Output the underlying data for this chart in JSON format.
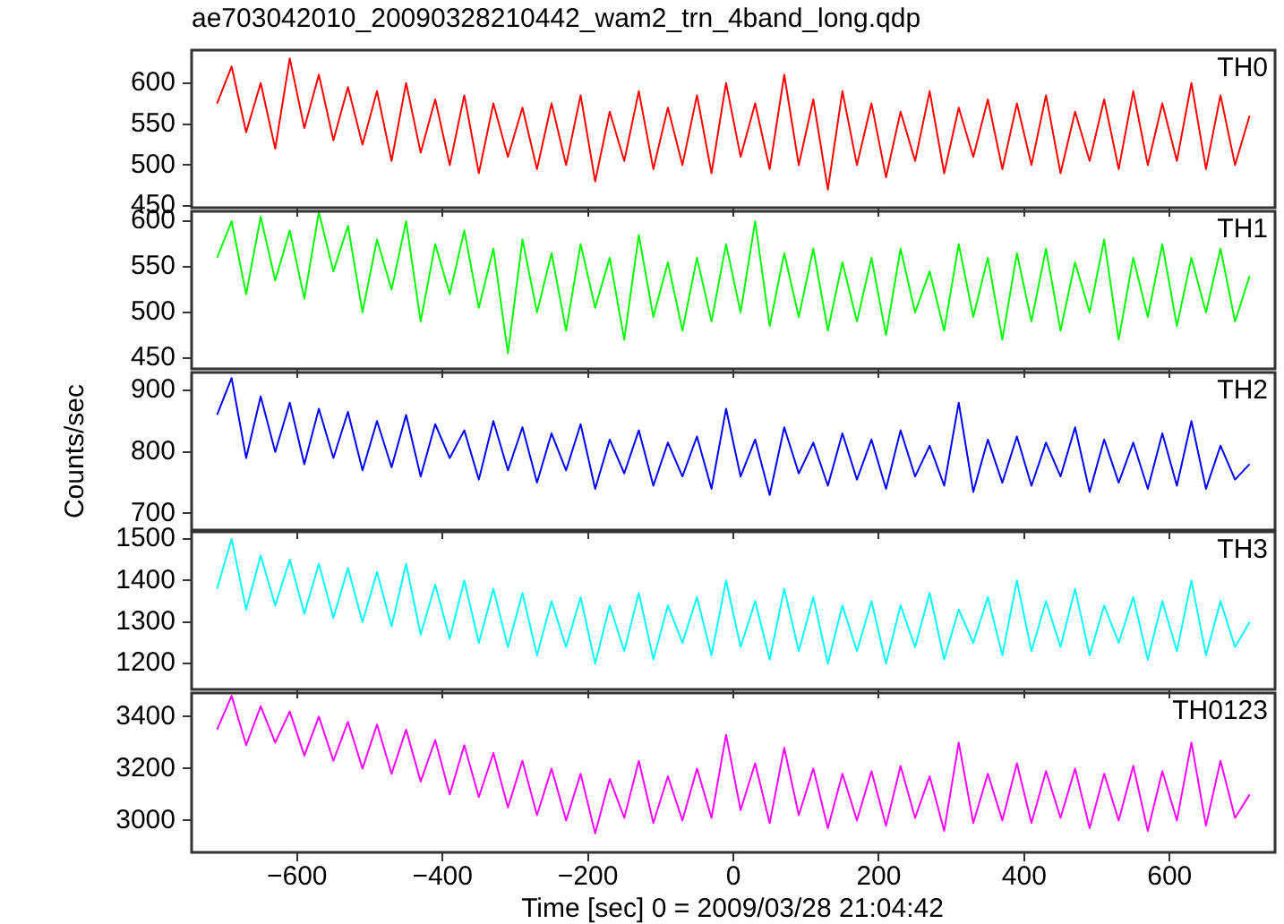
{
  "chart_data": [
    {
      "type": "line",
      "title": "ae703042010_20090328210442_wam2_trn_4band_long.qdp",
      "xlim": [
        -745,
        745
      ],
      "xticks": [
        -600,
        -400,
        -200,
        0,
        200,
        400,
        600
      ],
      "ylim": [
        448,
        640
      ],
      "yticks": [
        450,
        500,
        550,
        600
      ],
      "tick_labels": "y",
      "grid": false,
      "legend": false,
      "marker": "none",
      "x": [
        -710,
        -690,
        -670,
        -650,
        -630,
        -610,
        -590,
        -570,
        -550,
        -530,
        -510,
        -490,
        -470,
        -450,
        -430,
        -410,
        -390,
        -370,
        -350,
        -330,
        -310,
        -290,
        -270,
        -250,
        -230,
        -210,
        -190,
        -170,
        -150,
        -130,
        -110,
        -90,
        -70,
        -50,
        -30,
        -10,
        10,
        30,
        50,
        70,
        90,
        110,
        130,
        150,
        170,
        190,
        210,
        230,
        250,
        270,
        290,
        310,
        330,
        350,
        370,
        390,
        410,
        430,
        450,
        470,
        490,
        510,
        530,
        550,
        570,
        590,
        610,
        630,
        650,
        670,
        690,
        710
      ],
      "series": [
        {
          "name": "TH0",
          "color": "#ff0000",
          "values": [
            575,
            620,
            540,
            600,
            520,
            630,
            545,
            610,
            530,
            595,
            525,
            590,
            505,
            600,
            515,
            580,
            500,
            585,
            490,
            575,
            510,
            570,
            495,
            575,
            500,
            585,
            480,
            565,
            505,
            590,
            495,
            570,
            500,
            585,
            490,
            600,
            510,
            575,
            495,
            610,
            500,
            580,
            470,
            590,
            500,
            575,
            485,
            565,
            505,
            590,
            490,
            570,
            510,
            580,
            495,
            575,
            500,
            585,
            490,
            565,
            505,
            580,
            495,
            590,
            500,
            575,
            505,
            600,
            495,
            585,
            500,
            560
          ]
        }
      ]
    },
    {
      "type": "line",
      "xlim": [
        -745,
        745
      ],
      "xticks": [
        -600,
        -400,
        -200,
        0,
        200,
        400,
        600
      ],
      "ylim": [
        438,
        611
      ],
      "yticks": [
        450,
        500,
        550,
        600
      ],
      "tick_labels": "y",
      "grid": false,
      "legend": false,
      "marker": "none",
      "x": [
        -710,
        -690,
        -670,
        -650,
        -630,
        -610,
        -590,
        -570,
        -550,
        -530,
        -510,
        -490,
        -470,
        -450,
        -430,
        -410,
        -390,
        -370,
        -350,
        -330,
        -310,
        -290,
        -270,
        -250,
        -230,
        -210,
        -190,
        -170,
        -150,
        -130,
        -110,
        -90,
        -70,
        -50,
        -30,
        -10,
        10,
        30,
        50,
        70,
        90,
        110,
        130,
        150,
        170,
        190,
        210,
        230,
        250,
        270,
        290,
        310,
        330,
        350,
        370,
        390,
        410,
        430,
        450,
        470,
        490,
        510,
        530,
        550,
        570,
        590,
        610,
        630,
        650,
        670,
        690,
        710
      ],
      "series": [
        {
          "name": "TH1",
          "color": "#00ff00",
          "values": [
            560,
            600,
            520,
            605,
            535,
            590,
            515,
            610,
            545,
            595,
            500,
            580,
            525,
            600,
            490,
            575,
            520,
            590,
            505,
            570,
            455,
            580,
            500,
            565,
            480,
            575,
            505,
            560,
            470,
            585,
            495,
            555,
            480,
            560,
            490,
            575,
            500,
            600,
            485,
            565,
            495,
            570,
            480,
            555,
            490,
            560,
            475,
            570,
            500,
            545,
            480,
            575,
            495,
            560,
            470,
            565,
            490,
            570,
            480,
            555,
            500,
            580,
            470,
            560,
            495,
            575,
            485,
            560,
            500,
            570,
            490,
            540
          ]
        }
      ]
    },
    {
      "type": "line",
      "ylabel": "Counts/sec",
      "xlim": [
        -745,
        745
      ],
      "xticks": [
        -600,
        -400,
        -200,
        0,
        200,
        400,
        600
      ],
      "ylim": [
        673,
        929
      ],
      "yticks": [
        700,
        800,
        900
      ],
      "tick_labels": "y",
      "grid": false,
      "legend": false,
      "marker": "none",
      "x": [
        -710,
        -690,
        -670,
        -650,
        -630,
        -610,
        -590,
        -570,
        -550,
        -530,
        -510,
        -490,
        -470,
        -450,
        -430,
        -410,
        -390,
        -370,
        -350,
        -330,
        -310,
        -290,
        -270,
        -250,
        -230,
        -210,
        -190,
        -170,
        -150,
        -130,
        -110,
        -90,
        -70,
        -50,
        -30,
        -10,
        10,
        30,
        50,
        70,
        90,
        110,
        130,
        150,
        170,
        190,
        210,
        230,
        250,
        270,
        290,
        310,
        330,
        350,
        370,
        390,
        410,
        430,
        450,
        470,
        490,
        510,
        530,
        550,
        570,
        590,
        610,
        630,
        650,
        670,
        690,
        710
      ],
      "series": [
        {
          "name": "TH2",
          "color": "#0000ff",
          "values": [
            860,
            920,
            790,
            890,
            800,
            880,
            780,
            870,
            790,
            865,
            770,
            850,
            775,
            860,
            760,
            845,
            790,
            835,
            755,
            850,
            770,
            840,
            750,
            830,
            770,
            845,
            740,
            820,
            765,
            835,
            745,
            815,
            760,
            825,
            740,
            870,
            760,
            820,
            730,
            840,
            765,
            815,
            745,
            830,
            755,
            820,
            740,
            835,
            760,
            810,
            745,
            880,
            735,
            820,
            750,
            825,
            745,
            815,
            760,
            840,
            735,
            820,
            750,
            815,
            740,
            830,
            745,
            850,
            740,
            810,
            755,
            780
          ]
        }
      ]
    },
    {
      "type": "line",
      "xlim": [
        -745,
        745
      ],
      "xticks": [
        -600,
        -400,
        -200,
        0,
        200,
        400,
        600
      ],
      "ylim": [
        1138,
        1517
      ],
      "yticks": [
        1200,
        1300,
        1400,
        1500
      ],
      "tick_labels": "y",
      "grid": false,
      "legend": false,
      "marker": "none",
      "x": [
        -710,
        -690,
        -670,
        -650,
        -630,
        -610,
        -590,
        -570,
        -550,
        -530,
        -510,
        -490,
        -470,
        -450,
        -430,
        -410,
        -390,
        -370,
        -350,
        -330,
        -310,
        -290,
        -270,
        -250,
        -230,
        -210,
        -190,
        -170,
        -150,
        -130,
        -110,
        -90,
        -70,
        -50,
        -30,
        -10,
        10,
        30,
        50,
        70,
        90,
        110,
        130,
        150,
        170,
        190,
        210,
        230,
        250,
        270,
        290,
        310,
        330,
        350,
        370,
        390,
        410,
        430,
        450,
        470,
        490,
        510,
        530,
        550,
        570,
        590,
        610,
        630,
        650,
        670,
        690,
        710
      ],
      "series": [
        {
          "name": "TH3",
          "color": "#00ffff",
          "values": [
            1380,
            1500,
            1330,
            1460,
            1340,
            1450,
            1320,
            1440,
            1310,
            1430,
            1300,
            1420,
            1290,
            1440,
            1270,
            1390,
            1260,
            1400,
            1250,
            1380,
            1240,
            1370,
            1220,
            1350,
            1240,
            1360,
            1200,
            1340,
            1230,
            1370,
            1210,
            1340,
            1250,
            1360,
            1220,
            1400,
            1240,
            1350,
            1210,
            1380,
            1230,
            1360,
            1200,
            1340,
            1230,
            1350,
            1200,
            1340,
            1240,
            1370,
            1210,
            1330,
            1250,
            1360,
            1220,
            1400,
            1230,
            1350,
            1240,
            1380,
            1220,
            1340,
            1250,
            1360,
            1210,
            1350,
            1230,
            1400,
            1220,
            1350,
            1240,
            1300
          ]
        }
      ]
    },
    {
      "type": "line",
      "xlabel": "Time [sec] 0 = 2009/03/28 21:04:42",
      "xlim": [
        -745,
        745
      ],
      "xticks": [
        -600,
        -400,
        -200,
        0,
        200,
        400,
        600
      ],
      "ylim": [
        2877,
        3491
      ],
      "yticks": [
        3000,
        3200,
        3400
      ],
      "grid": false,
      "legend": false,
      "marker": "none",
      "x": [
        -710,
        -690,
        -670,
        -650,
        -630,
        -610,
        -590,
        -570,
        -550,
        -530,
        -510,
        -490,
        -470,
        -450,
        -430,
        -410,
        -390,
        -370,
        -350,
        -330,
        -310,
        -290,
        -270,
        -250,
        -230,
        -210,
        -190,
        -170,
        -150,
        -130,
        -110,
        -90,
        -70,
        -50,
        -30,
        -10,
        10,
        30,
        50,
        70,
        90,
        110,
        130,
        150,
        170,
        190,
        210,
        230,
        250,
        270,
        290,
        310,
        330,
        350,
        370,
        390,
        410,
        430,
        450,
        470,
        490,
        510,
        530,
        550,
        570,
        590,
        610,
        630,
        650,
        670,
        690,
        710
      ],
      "series": [
        {
          "name": "TH0123",
          "color": "#ff00ff",
          "values": [
            3350,
            3480,
            3290,
            3440,
            3300,
            3420,
            3250,
            3400,
            3230,
            3380,
            3200,
            3370,
            3180,
            3350,
            3150,
            3310,
            3100,
            3290,
            3090,
            3260,
            3050,
            3230,
            3020,
            3200,
            3000,
            3180,
            2950,
            3160,
            3010,
            3230,
            2990,
            3170,
            3000,
            3200,
            3010,
            3330,
            3040,
            3220,
            2990,
            3280,
            3020,
            3200,
            2970,
            3180,
            3000,
            3190,
            2980,
            3210,
            3010,
            3170,
            2960,
            3300,
            2990,
            3180,
            3000,
            3220,
            2990,
            3190,
            3010,
            3200,
            2970,
            3180,
            3000,
            3210,
            2960,
            3190,
            3000,
            3300,
            2980,
            3230,
            3010,
            3100
          ]
        }
      ]
    }
  ]
}
